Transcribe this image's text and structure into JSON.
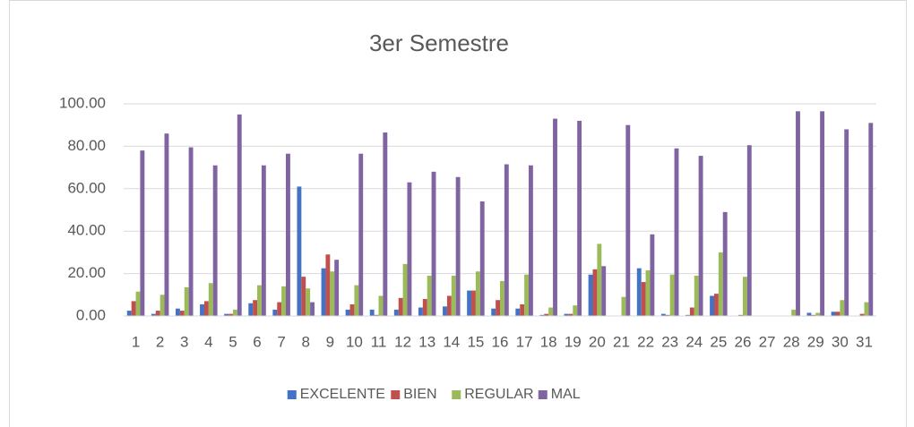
{
  "chart_data": {
    "type": "bar",
    "title": "3er Semestre",
    "categories": [
      "1",
      "2",
      "3",
      "4",
      "5",
      "6",
      "7",
      "8",
      "9",
      "10",
      "11",
      "12",
      "13",
      "14",
      "15",
      "16",
      "17",
      "18",
      "19",
      "20",
      "21",
      "22",
      "23",
      "24",
      "25",
      "26",
      "27",
      "28",
      "29",
      "30",
      "31"
    ],
    "series": [
      {
        "name": "EXCELENTE",
        "color": "#4472c4",
        "values": [
          2.5,
          1,
          3.5,
          5.5,
          1,
          6,
          3,
          61,
          22.5,
          3,
          3,
          3,
          4,
          4.5,
          12,
          3.5,
          3.5,
          0.5,
          1,
          19.5,
          0,
          22.5,
          1,
          0.5,
          9.5,
          0,
          0,
          0,
          1.5,
          2,
          0
        ]
      },
      {
        "name": "BIEN",
        "color": "#c0504d",
        "values": [
          7,
          2.5,
          2.5,
          7,
          1,
          7.5,
          6.5,
          18.5,
          29,
          5.5,
          0.5,
          8.5,
          8,
          9.5,
          12,
          7.5,
          5.5,
          1,
          1,
          22,
          0,
          16,
          0.5,
          4,
          10.5,
          0.5,
          0,
          0,
          0.5,
          2,
          1
        ]
      },
      {
        "name": "REGULAR",
        "color": "#9bbb59",
        "values": [
          11.5,
          10,
          13.5,
          15.5,
          3,
          14.5,
          14,
          13,
          21,
          14.5,
          9.5,
          24.5,
          19,
          19,
          21,
          16.5,
          19.5,
          4,
          5,
          34,
          9,
          21.5,
          19.5,
          19,
          30,
          18.5,
          0,
          3,
          1.5,
          7.5,
          6.5
        ]
      },
      {
        "name": "MAL",
        "color": "#8064a2",
        "values": [
          78,
          86,
          79.5,
          71,
          95,
          71,
          76.5,
          6.5,
          26.5,
          76.5,
          86.5,
          63,
          68,
          65.5,
          54,
          71.5,
          71,
          93,
          92,
          23.5,
          90,
          38.5,
          79,
          75.5,
          49,
          80.5,
          0,
          96.5,
          96.5,
          88,
          91
        ]
      }
    ],
    "ylim": [
      0,
      100
    ],
    "yticks": [
      {
        "value": 0,
        "label": "0.00"
      },
      {
        "value": 20,
        "label": "20.00"
      },
      {
        "value": 40,
        "label": "40.00"
      },
      {
        "value": 60,
        "label": "60.00"
      },
      {
        "value": 80,
        "label": "80.00"
      },
      {
        "value": 100,
        "label": "100.00"
      }
    ],
    "legend": "bottom"
  }
}
